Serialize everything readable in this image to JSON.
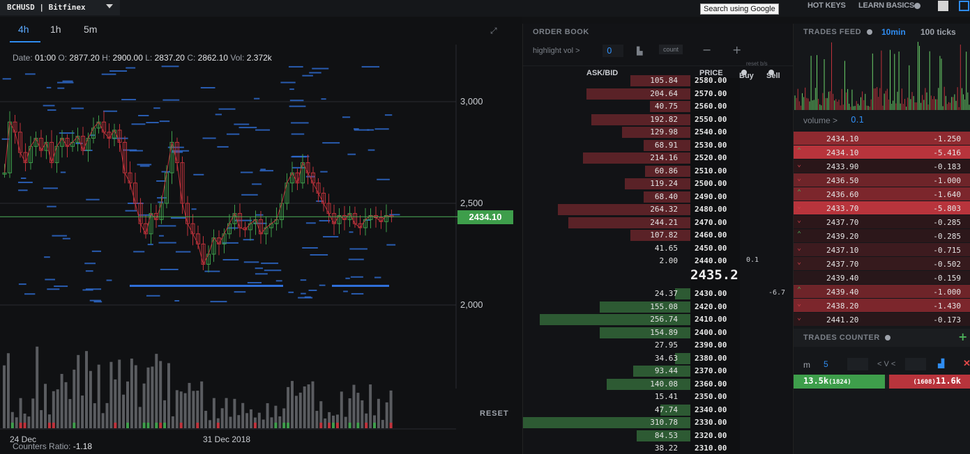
{
  "topbar": {
    "symbol": "BCHUSD | Bitfinex",
    "search_tooltip": "Search using Google",
    "hotkeys": "HOT KEYS",
    "learn_basics": "LEARN BASICS"
  },
  "chart": {
    "timeframes": [
      "4h",
      "1h",
      "5m"
    ],
    "active_timeframe": "4h",
    "ohlc": {
      "date_label": "Date:",
      "date": "01:00",
      "open_label": "O:",
      "open": "2877.20",
      "high_label": "H:",
      "high": "2900.00",
      "low_label": "L:",
      "low": "2837.20",
      "close_label": "C:",
      "close": "2862.10",
      "vol_label": "Vol:",
      "vol": "2.372k"
    },
    "y_labels": [
      "3,000",
      "2,500",
      "2,000"
    ],
    "current_price": "2434.10",
    "reset_label": "RESET",
    "x_labels": [
      "24 Dec",
      "31 Dec  2018"
    ],
    "counters_ratio_label": "Counters Ratio:",
    "counters_ratio": "-1.18",
    "colors": {
      "up": "#3e9e4b",
      "down": "#c0323b",
      "level": "#2f6fd8",
      "price_line": "#4cb05a"
    }
  },
  "orderbook": {
    "title": "ORDER BOOK",
    "highlight_label": "highlight vol >",
    "highlight_value": "0",
    "count_label": "count",
    "reset_bs": "reset b/s",
    "headers": {
      "askbid": "ASK/BID",
      "price": "PRICE",
      "buy": "Buy",
      "sell": "Sell"
    },
    "asks": [
      {
        "vol": "105.84",
        "price": "2580.00",
        "depth": 0.36
      },
      {
        "vol": "204.64",
        "price": "2570.00",
        "depth": 0.62
      },
      {
        "vol": "40.75",
        "price": "2560.00",
        "depth": 0.24
      },
      {
        "vol": "192.82",
        "price": "2550.00",
        "depth": 0.59
      },
      {
        "vol": "129.98",
        "price": "2540.00",
        "depth": 0.41
      },
      {
        "vol": "68.91",
        "price": "2530.00",
        "depth": 0.28
      },
      {
        "vol": "214.16",
        "price": "2520.00",
        "depth": 0.64
      },
      {
        "vol": "60.86",
        "price": "2510.00",
        "depth": 0.27
      },
      {
        "vol": "119.24",
        "price": "2500.00",
        "depth": 0.39
      },
      {
        "vol": "68.40",
        "price": "2490.00",
        "depth": 0.28
      },
      {
        "vol": "264.32",
        "price": "2480.00",
        "depth": 0.79
      },
      {
        "vol": "244.21",
        "price": "2470.00",
        "depth": 0.73
      },
      {
        "vol": "107.82",
        "price": "2460.00",
        "depth": 0.36
      },
      {
        "vol": "41.65",
        "price": "2450.00",
        "depth": 0.0
      },
      {
        "vol": "2.00",
        "price": "2440.00",
        "depth": 0.0,
        "buy": "0.1"
      }
    ],
    "mid_price": "2435.2",
    "bids": [
      {
        "vol": "24.37",
        "price": "2430.00",
        "depth": 0.09,
        "sell": "-6.7"
      },
      {
        "vol": "155.08",
        "price": "2420.00",
        "depth": 0.54
      },
      {
        "vol": "256.74",
        "price": "2410.00",
        "depth": 0.9
      },
      {
        "vol": "154.89",
        "price": "2400.00",
        "depth": 0.54
      },
      {
        "vol": "27.95",
        "price": "2390.00",
        "depth": 0.0
      },
      {
        "vol": "34.63",
        "price": "2380.00",
        "depth": 0.09
      },
      {
        "vol": "93.44",
        "price": "2370.00",
        "depth": 0.34
      },
      {
        "vol": "140.08",
        "price": "2360.00",
        "depth": 0.5
      },
      {
        "vol": "15.41",
        "price": "2350.00",
        "depth": 0.0
      },
      {
        "vol": "47.74",
        "price": "2340.00",
        "depth": 0.18
      },
      {
        "vol": "310.78",
        "price": "2330.00",
        "depth": 1.0
      },
      {
        "vol": "84.53",
        "price": "2320.00",
        "depth": 0.32
      },
      {
        "vol": "38.22",
        "price": "2310.00",
        "depth": 0.0
      }
    ]
  },
  "trades": {
    "title": "TRADES FEED",
    "tab_10min": "10min",
    "tab_100ticks": "100 ticks",
    "volume_label": "volume >",
    "volume_value": "0.1",
    "rows": [
      {
        "price": "2434.10",
        "amount": "-1.250",
        "arrow": "",
        "bg": "#8f2a30"
      },
      {
        "price": "2434.10",
        "amount": "-5.416",
        "arrow": "up",
        "bg": "#b8343c"
      },
      {
        "price": "2433.90",
        "amount": "-0.183",
        "arrow": "down",
        "bg": "#2a1619"
      },
      {
        "price": "2436.50",
        "amount": "-1.000",
        "arrow": "down",
        "bg": "#6e2429"
      },
      {
        "price": "2436.60",
        "amount": "-1.640",
        "arrow": "up",
        "bg": "#7c262c"
      },
      {
        "price": "2433.70",
        "amount": "-5.803",
        "arrow": "down",
        "bg": "#b8343c"
      },
      {
        "price": "2437.70",
        "amount": "-0.285",
        "arrow": "down",
        "bg": "#2c171a"
      },
      {
        "price": "2439.20",
        "amount": "-0.285",
        "arrow": "up",
        "bg": "#2c171a"
      },
      {
        "price": "2437.10",
        "amount": "-0.715",
        "arrow": "down",
        "bg": "#3d1b1f"
      },
      {
        "price": "2437.70",
        "amount": "-0.502",
        "arrow": "down",
        "bg": "#361a1d"
      },
      {
        "price": "2439.40",
        "amount": "-0.159",
        "arrow": "",
        "bg": "#28171a"
      },
      {
        "price": "2439.40",
        "amount": "-1.000",
        "arrow": "up",
        "bg": "#6e2429"
      },
      {
        "price": "2438.20",
        "amount": "-1.430",
        "arrow": "down",
        "bg": "#7c262c"
      },
      {
        "price": "2441.20",
        "amount": "-0.173",
        "arrow": "down",
        "bg": "#28171a"
      }
    ]
  },
  "counter": {
    "title": "TRADES COUNTER",
    "m_label": "m",
    "m_value": "5",
    "v_label": "< V <",
    "buy_value": "13.5k",
    "buy_count": "(1824)",
    "sell_count": "(1608)",
    "sell_value": "11.6k"
  }
}
